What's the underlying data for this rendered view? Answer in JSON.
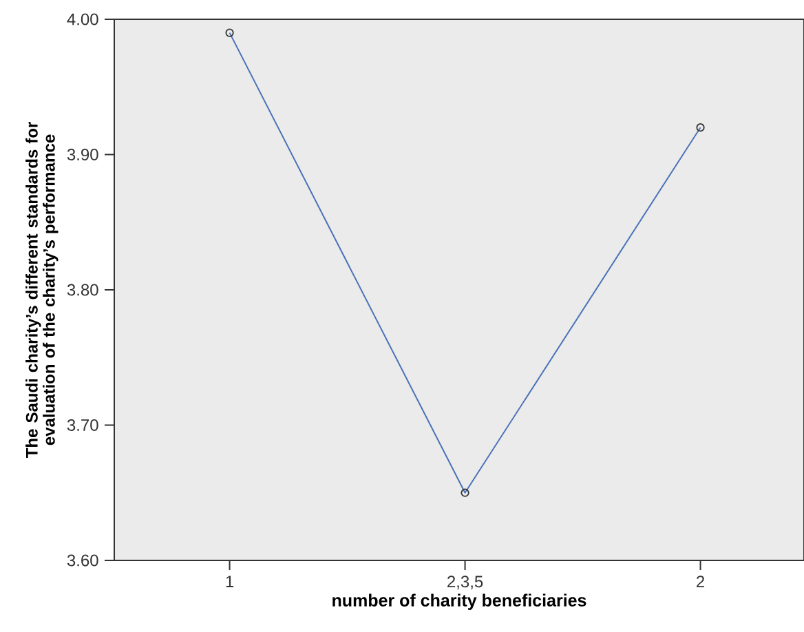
{
  "chart_data": {
    "type": "line",
    "xlabel": "number of charity beneficiaries",
    "ylabel": "The Saudi charity’s different standards for evaluation of the charity’s performance",
    "categories": [
      "1",
      "2,3,5",
      "2"
    ],
    "series": [
      {
        "color": "#4a72b8",
        "values": [
          3.99,
          3.65,
          3.92
        ]
      }
    ],
    "ylim": [
      3.6,
      4.0
    ],
    "yticks": [
      {
        "value": 3.6,
        "label": "3.60"
      },
      {
        "value": 3.7,
        "label": "3.70"
      },
      {
        "value": 3.8,
        "label": "3.80"
      },
      {
        "value": 3.9,
        "label": "3.90"
      },
      {
        "value": 4.0,
        "label": "4.00"
      }
    ],
    "marker": "circle",
    "line_style": "solid"
  }
}
